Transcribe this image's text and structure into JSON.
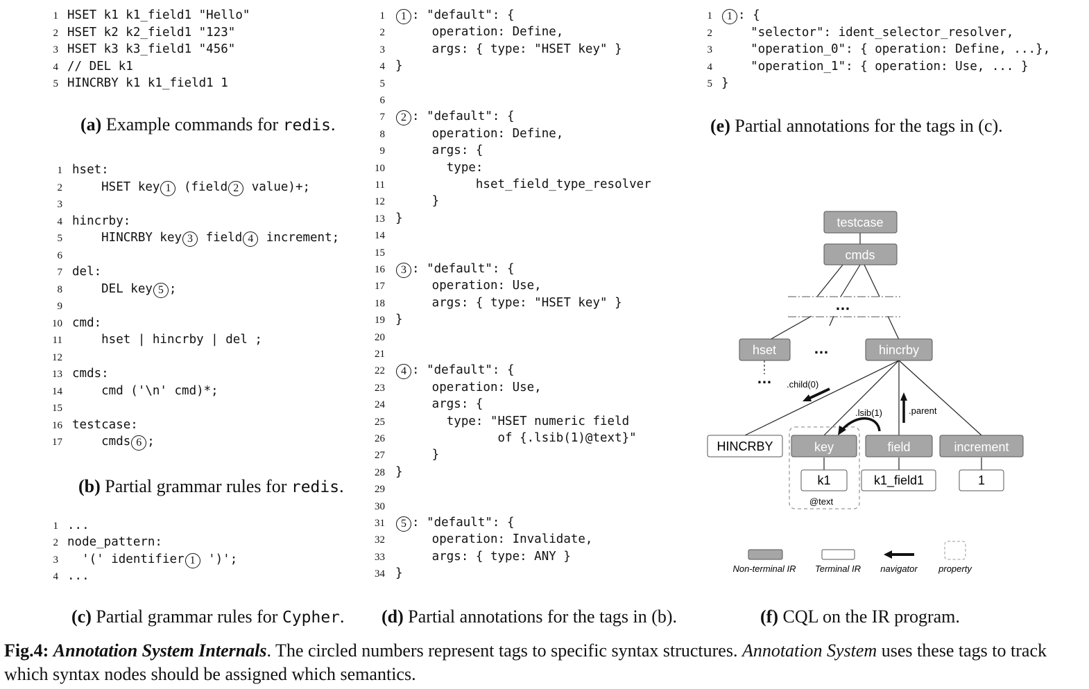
{
  "panel_a": {
    "lines": [
      {
        "n": "1",
        "t": "HSET k1 k1_field1 \"Hello\""
      },
      {
        "n": "2",
        "t": "HSET k2 k2_field1 \"123\""
      },
      {
        "n": "3",
        "t": "HSET k3 k3_field1 \"456\""
      },
      {
        "n": "4",
        "t": "// DEL k1"
      },
      {
        "n": "5",
        "t": "HINCRBY k1 k1_field1 1"
      }
    ],
    "caption_label": "(a)",
    "caption_text": " Example commands for ",
    "caption_code": "redis",
    "caption_end": "."
  },
  "panel_b": {
    "lines": [
      {
        "n": "1",
        "segs": [
          {
            "t": "hset:"
          }
        ]
      },
      {
        "n": "2",
        "segs": [
          {
            "t": "    HSET key"
          },
          {
            "tag": "1"
          },
          {
            "t": " (field"
          },
          {
            "tag": "2"
          },
          {
            "t": " value)+;"
          }
        ]
      },
      {
        "n": "3",
        "segs": [
          {
            "t": ""
          }
        ]
      },
      {
        "n": "4",
        "segs": [
          {
            "t": "hincrby:"
          }
        ]
      },
      {
        "n": "5",
        "segs": [
          {
            "t": "    HINCRBY key"
          },
          {
            "tag": "3"
          },
          {
            "t": " field"
          },
          {
            "tag": "4"
          },
          {
            "t": " increment;"
          }
        ]
      },
      {
        "n": "6",
        "segs": [
          {
            "t": ""
          }
        ]
      },
      {
        "n": "7",
        "segs": [
          {
            "t": "del:"
          }
        ]
      },
      {
        "n": "8",
        "segs": [
          {
            "t": "    DEL key"
          },
          {
            "tag": "5"
          },
          {
            "t": ";"
          }
        ]
      },
      {
        "n": "9",
        "segs": [
          {
            "t": ""
          }
        ]
      },
      {
        "n": "10",
        "segs": [
          {
            "t": "cmd:"
          }
        ]
      },
      {
        "n": "11",
        "segs": [
          {
            "t": "    hset | hincrby | del ;"
          }
        ]
      },
      {
        "n": "12",
        "segs": [
          {
            "t": ""
          }
        ]
      },
      {
        "n": "13",
        "segs": [
          {
            "t": "cmds:"
          }
        ]
      },
      {
        "n": "14",
        "segs": [
          {
            "t": "    cmd ('\\n' cmd)*;"
          }
        ]
      },
      {
        "n": "15",
        "segs": [
          {
            "t": ""
          }
        ]
      },
      {
        "n": "16",
        "segs": [
          {
            "t": "testcase:"
          }
        ]
      },
      {
        "n": "17",
        "segs": [
          {
            "t": "    cmds"
          },
          {
            "tag": "6"
          },
          {
            "t": ";"
          }
        ]
      }
    ],
    "caption_label": "(b)",
    "caption_text": " Partial grammar rules for ",
    "caption_code": "redis",
    "caption_end": "."
  },
  "panel_c": {
    "lines": [
      {
        "n": "1",
        "segs": [
          {
            "t": "..."
          }
        ]
      },
      {
        "n": "2",
        "segs": [
          {
            "t": "node_pattern:"
          }
        ]
      },
      {
        "n": "3",
        "segs": [
          {
            "t": "  '(' identifier"
          },
          {
            "tag": "1"
          },
          {
            "t": " ')';"
          }
        ]
      },
      {
        "n": "4",
        "segs": [
          {
            "t": "..."
          }
        ]
      }
    ],
    "caption_label": "(c)",
    "caption_text": " Partial grammar rules for ",
    "caption_code": "Cypher",
    "caption_end": "."
  },
  "panel_d": {
    "lines": [
      {
        "n": "1",
        "segs": [
          {
            "tag": "1"
          },
          {
            "t": ": \"default\": {"
          }
        ]
      },
      {
        "n": "2",
        "segs": [
          {
            "t": "     operation: Define,"
          }
        ]
      },
      {
        "n": "3",
        "segs": [
          {
            "t": "     args: { type: \"HSET key\" }"
          }
        ]
      },
      {
        "n": "4",
        "segs": [
          {
            "t": "}"
          }
        ]
      },
      {
        "n": "5",
        "segs": [
          {
            "t": ""
          }
        ]
      },
      {
        "n": "6",
        "segs": [
          {
            "t": ""
          }
        ]
      },
      {
        "n": "7",
        "segs": [
          {
            "tag": "2"
          },
          {
            "t": ": \"default\": {"
          }
        ]
      },
      {
        "n": "8",
        "segs": [
          {
            "t": "     operation: Define,"
          }
        ]
      },
      {
        "n": "9",
        "segs": [
          {
            "t": "     args: {"
          }
        ]
      },
      {
        "n": "10",
        "segs": [
          {
            "t": "       type:"
          }
        ]
      },
      {
        "n": "11",
        "segs": [
          {
            "t": "           hset_field_type_resolver"
          }
        ]
      },
      {
        "n": "12",
        "segs": [
          {
            "t": "     }"
          }
        ]
      },
      {
        "n": "13",
        "segs": [
          {
            "t": "}"
          }
        ]
      },
      {
        "n": "14",
        "segs": [
          {
            "t": ""
          }
        ]
      },
      {
        "n": "15",
        "segs": [
          {
            "t": ""
          }
        ]
      },
      {
        "n": "16",
        "segs": [
          {
            "tag": "3"
          },
          {
            "t": ": \"default\": {"
          }
        ]
      },
      {
        "n": "17",
        "segs": [
          {
            "t": "     operation: Use,"
          }
        ]
      },
      {
        "n": "18",
        "segs": [
          {
            "t": "     args: { type: \"HSET key\" }"
          }
        ]
      },
      {
        "n": "19",
        "segs": [
          {
            "t": "}"
          }
        ]
      },
      {
        "n": "20",
        "segs": [
          {
            "t": ""
          }
        ]
      },
      {
        "n": "21",
        "segs": [
          {
            "t": ""
          }
        ]
      },
      {
        "n": "22",
        "segs": [
          {
            "tag": "4"
          },
          {
            "t": ": \"default\": {"
          }
        ]
      },
      {
        "n": "23",
        "segs": [
          {
            "t": "     operation: Use,"
          }
        ]
      },
      {
        "n": "24",
        "segs": [
          {
            "t": "     args: {"
          }
        ]
      },
      {
        "n": "25",
        "segs": [
          {
            "t": "       type: \"HSET numeric field"
          }
        ]
      },
      {
        "n": "26",
        "segs": [
          {
            "t": "              of {.lsib(1)@text}\""
          }
        ]
      },
      {
        "n": "27",
        "segs": [
          {
            "t": "     }"
          }
        ]
      },
      {
        "n": "28",
        "segs": [
          {
            "t": "}"
          }
        ]
      },
      {
        "n": "29",
        "segs": [
          {
            "t": ""
          }
        ]
      },
      {
        "n": "30",
        "segs": [
          {
            "t": ""
          }
        ]
      },
      {
        "n": "31",
        "segs": [
          {
            "tag": "5"
          },
          {
            "t": ": \"default\": {"
          }
        ]
      },
      {
        "n": "32",
        "segs": [
          {
            "t": "     operation: Invalidate,"
          }
        ]
      },
      {
        "n": "33",
        "segs": [
          {
            "t": "     args: { type: ANY }"
          }
        ]
      },
      {
        "n": "34",
        "segs": [
          {
            "t": "}"
          }
        ]
      }
    ],
    "caption_label": "(d)",
    "caption_text": " Partial annotations for the tags in (b)."
  },
  "panel_e": {
    "lines": [
      {
        "n": "1",
        "segs": [
          {
            "tag": "1"
          },
          {
            "t": ": {"
          }
        ]
      },
      {
        "n": "2",
        "segs": [
          {
            "t": "    \"selector\": ident_selector_resolver,"
          }
        ]
      },
      {
        "n": "3",
        "segs": [
          {
            "t": "    \"operation_0\": { operation: Define, ...},"
          }
        ]
      },
      {
        "n": "4",
        "segs": [
          {
            "t": "    \"operation_1\": { operation: Use, ... }"
          }
        ]
      },
      {
        "n": "5",
        "segs": [
          {
            "t": "}"
          }
        ]
      }
    ],
    "caption_label": "(e)",
    "caption_text": " Partial annotations for the tags in (c)."
  },
  "panel_f": {
    "nodes": {
      "testcase": "testcase",
      "cmds": "cmds",
      "ellipsis": "…",
      "hset": "hset",
      "hincrby": "hincrby",
      "HINCRBY": "HINCRBY",
      "key": "key",
      "field": "field",
      "increment": "increment",
      "k1": "k1",
      "k1_field1": "k1_field1",
      "one": "1"
    },
    "labels": {
      "child0": ".child(0)",
      "lsib1": ".lsib(1)",
      "parent": ".parent",
      "text": "@text"
    },
    "legend": {
      "nonterminal": "Non-terminal IR",
      "terminal": "Terminal IR",
      "navigator": "navigator",
      "property": "property"
    },
    "caption_label": "(f)",
    "caption_text": " CQL on the IR program."
  },
  "figure_caption": {
    "label": "Fig.4:",
    "title": "Annotation System Internals",
    "text1": ". The circled numbers represent tags to specific syntax structures. ",
    "italic2": "Annotation System",
    "text2": " uses these tags to track which syntax nodes should be assigned which semantics."
  },
  "colors": {
    "nonterminal_fill": "#a6a6a6",
    "nonterminal_text": "#ffffff",
    "line": "#222222"
  }
}
